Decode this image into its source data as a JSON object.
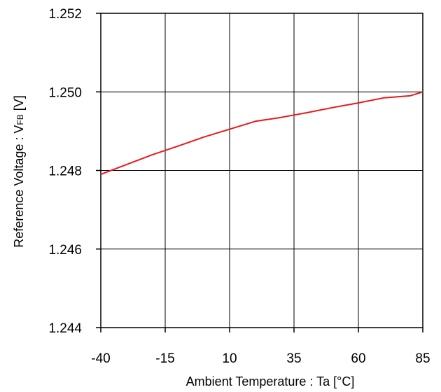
{
  "chart_data": {
    "type": "line",
    "title": "",
    "xlabel": "Ambient Temperature : Ta [°C]",
    "ylabel_prefix": "Reference Voltage : V",
    "ylabel_subscript": "FB",
    "ylabel_suffix": " [V]",
    "xlim": [
      -40,
      85
    ],
    "ylim": [
      1.244,
      1.252
    ],
    "xticks": [
      -40,
      -15,
      10,
      35,
      60,
      85
    ],
    "yticks": [
      "1.244",
      "1.246",
      "1.248",
      "1.250",
      "1.252"
    ],
    "grid": true,
    "series": [
      {
        "color": "#e8191e",
        "x": [
          -40,
          -30,
          -20,
          -10,
          0,
          10,
          20,
          30,
          40,
          50,
          60,
          70,
          80,
          85
        ],
        "y": [
          1.2479,
          1.24815,
          1.2484,
          1.24862,
          1.24885,
          1.24905,
          1.24925,
          1.24935,
          1.24947,
          1.2496,
          1.24972,
          1.24985,
          1.2499,
          1.25
        ]
      }
    ]
  }
}
